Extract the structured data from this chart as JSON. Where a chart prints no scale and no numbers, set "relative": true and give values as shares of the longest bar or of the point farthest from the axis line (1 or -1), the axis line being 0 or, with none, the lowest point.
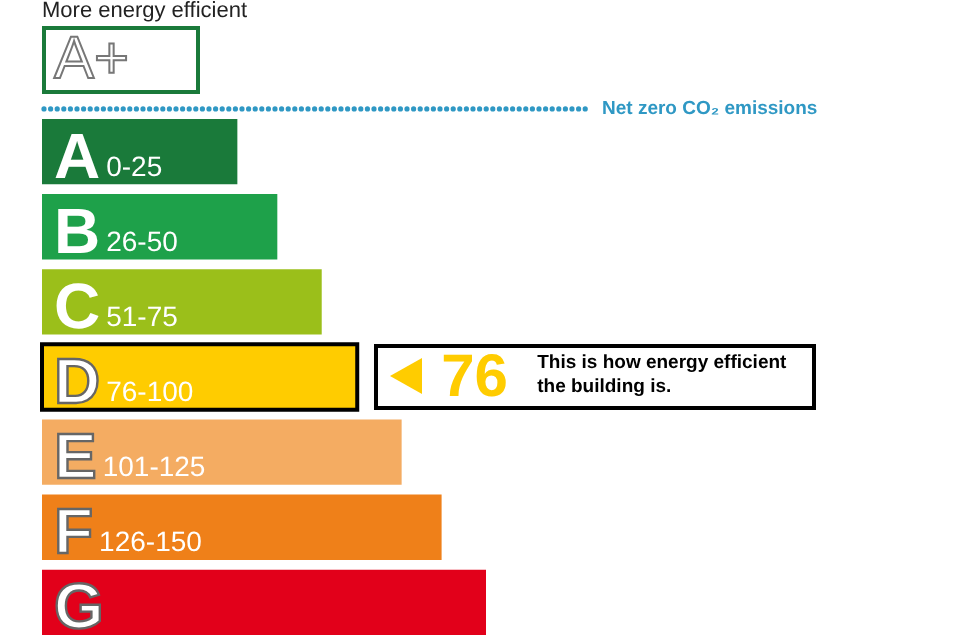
{
  "chart_data": {
    "type": "bar",
    "orientation": "horizontal",
    "relative": true,
    "title": "More energy efficient",
    "categories": [
      "A0-25",
      "B26-50",
      "C51-75",
      "D76-100",
      "E101-125",
      "F126-150",
      "G"
    ],
    "values": [
      0.44,
      0.53,
      0.63,
      0.71,
      0.81,
      0.9,
      1
    ],
    "colors": [
      "#1a7a3a",
      "#1ea14a",
      "#9bbf1a",
      "#ffcc00",
      "#f4ac62",
      "#ef8019",
      "#e2001a"
    ],
    "annotations": [
      "A+",
      "Net zero CO₂ emissions",
      "76",
      "This is how energy efficient the building is."
    ]
  }
}
